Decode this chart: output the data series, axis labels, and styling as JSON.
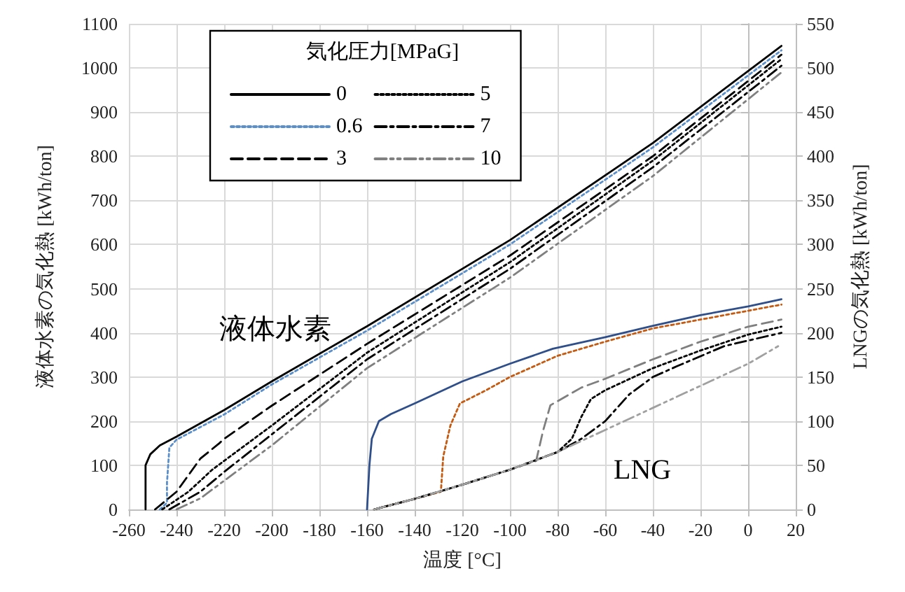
{
  "chart_data": {
    "type": "line",
    "xlabel": "温度 [°C]",
    "ylabel": "液体水素の気化熱 [kWh/ton]",
    "y2label": "LNGの気化熱 [kWh/ton]",
    "legend_title": "気化圧力[MPaG]",
    "legend": "top left",
    "grid": true,
    "marker": "none",
    "xlim": [
      -260,
      20
    ],
    "xticks": [
      -260,
      -240,
      -220,
      -200,
      -180,
      -160,
      -140,
      -120,
      -100,
      -80,
      -60,
      -40,
      -20,
      0,
      20
    ],
    "ylim": [
      0,
      1100
    ],
    "yticks": [
      0,
      100,
      200,
      300,
      400,
      500,
      600,
      700,
      800,
      900,
      1000,
      1100
    ],
    "y2lim": [
      0,
      550
    ],
    "y2ticks": [
      0,
      50,
      100,
      150,
      200,
      250,
      300,
      350,
      400,
      450,
      500,
      550
    ],
    "annotations": [
      "液体水素",
      "LNG"
    ],
    "series": [
      {
        "name": "0",
        "color": "#000000",
        "line_style": "solid",
        "x": [
          -253,
          -253,
          -251,
          -247,
          -240,
          -220,
          -200,
          -160,
          -100,
          -40,
          14
        ],
        "values": [
          0,
          100,
          125,
          145,
          165,
          225,
          290,
          415,
          610,
          830,
          1050
        ]
      },
      {
        "name": "0.6",
        "color": "#5b8fc9",
        "line_style": "dotted",
        "x": [
          -247,
          -244,
          -244,
          -243,
          -240,
          -220,
          -200,
          -160,
          -100,
          -40,
          14
        ],
        "values": [
          0,
          15,
          60,
          140,
          158,
          215,
          283,
          405,
          600,
          820,
          1040
        ]
      },
      {
        "name": "3",
        "color": "#000000",
        "line_style": "dashed",
        "x": [
          -249,
          -240,
          -230,
          -222,
          -220,
          -200,
          -160,
          -100,
          -40,
          14
        ],
        "values": [
          0,
          40,
          115,
          150,
          160,
          235,
          375,
          575,
          800,
          1030
        ]
      },
      {
        "name": "5",
        "color": "#000000",
        "line_style": "dotted",
        "x": [
          -246,
          -235,
          -225,
          -220,
          -200,
          -160,
          -100,
          -40,
          14
        ],
        "values": [
          0,
          40,
          90,
          110,
          190,
          355,
          560,
          790,
          1020
        ]
      },
      {
        "name": "7",
        "color": "#000000",
        "line_style": "dashdot",
        "x": [
          -243,
          -230,
          -220,
          -200,
          -160,
          -100,
          -40,
          14
        ],
        "values": [
          0,
          40,
          85,
          170,
          340,
          545,
          775,
          1005
        ]
      },
      {
        "name": "10",
        "color": "#808080",
        "line_style": "dashdotdot",
        "x": [
          -240,
          -230,
          -220,
          -200,
          -160,
          -100,
          -40,
          14
        ],
        "values": [
          0,
          25,
          65,
          145,
          320,
          525,
          755,
          990
        ]
      },
      {
        "axis": "y2",
        "color": "#2f4f8a",
        "line_style": "solid",
        "x": [
          -160,
          -159,
          -158,
          -155,
          -150,
          -140,
          -120,
          -100,
          -82,
          -60,
          -40,
          -20,
          0,
          14
        ],
        "values": [
          0,
          50,
          80,
          100,
          108,
          120,
          145,
          165,
          182,
          195,
          208,
          220,
          230,
          238
        ]
      },
      {
        "axis": "y2",
        "color": "#c55a11",
        "line_style": "dotted",
        "x": [
          -157,
          -140,
          -129,
          -128,
          -125,
          -121,
          -110,
          -100,
          -80,
          -60,
          -40,
          -20,
          0,
          14
        ],
        "values": [
          0,
          12,
          20,
          60,
          95,
          120,
          135,
          150,
          174,
          190,
          205,
          215,
          225,
          232
        ]
      },
      {
        "axis": "y2",
        "color": "#7f7f7f",
        "line_style": "dashed",
        "x": [
          -157,
          -140,
          -120,
          -100,
          -89,
          -86,
          -83,
          -70,
          -60,
          -40,
          -20,
          0,
          14
        ],
        "values": [
          0,
          12,
          28,
          45,
          55,
          90,
          118,
          138,
          148,
          170,
          190,
          207,
          215
        ]
      },
      {
        "axis": "y2",
        "color": "#000000",
        "line_style": "dotted",
        "x": [
          -157,
          -140,
          -120,
          -100,
          -80,
          -74,
          -70,
          -66,
          -60,
          -40,
          -20,
          0,
          14
        ],
        "values": [
          0,
          12,
          28,
          45,
          65,
          80,
          105,
          125,
          135,
          160,
          180,
          198,
          207
        ]
      },
      {
        "axis": "y2",
        "color": "#000000",
        "line_style": "dashdot",
        "x": [
          -157,
          -140,
          -120,
          -100,
          -80,
          -70,
          -60,
          -50,
          -40,
          -30,
          -10,
          14
        ],
        "values": [
          0,
          12,
          28,
          45,
          65,
          80,
          100,
          130,
          150,
          162,
          185,
          200
        ]
      },
      {
        "axis": "y2",
        "color": "#a0a0a0",
        "line_style": "dashdotdot",
        "x": [
          -157,
          -140,
          -120,
          -100,
          -80,
          -60,
          -40,
          -20,
          0,
          14
        ],
        "values": [
          0,
          12,
          28,
          45,
          65,
          90,
          115,
          140,
          165,
          187
        ]
      }
    ]
  }
}
